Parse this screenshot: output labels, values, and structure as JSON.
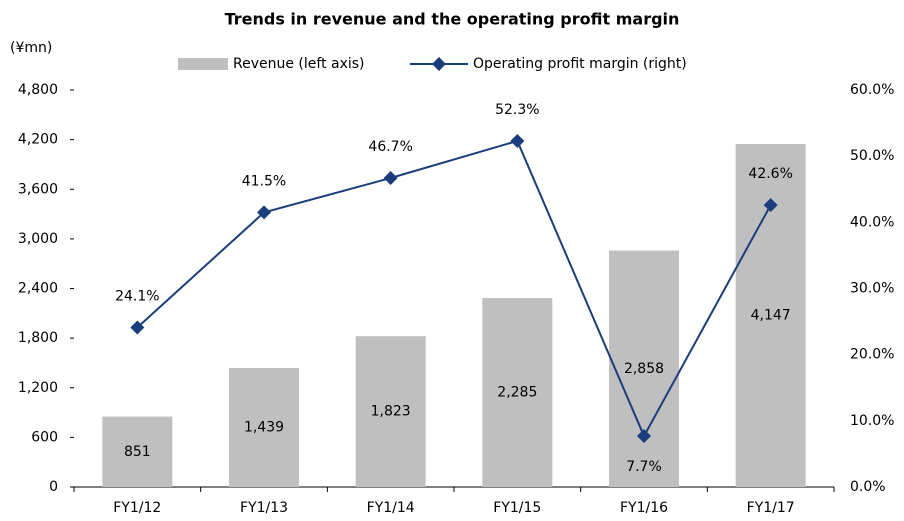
{
  "chart_data": {
    "type": "bar_line",
    "title": "Trends in revenue and the operating profit margin",
    "y_label": "(¥mn)",
    "categories": [
      "FY1/12",
      "FY1/13",
      "FY1/14",
      "FY1/15",
      "FY1/16",
      "FY1/17"
    ],
    "series": [
      {
        "name": "Revenue (left axis)",
        "type": "bar",
        "color": "#bfbfbf",
        "values": [
          851,
          1439,
          1823,
          2285,
          2858,
          4147
        ],
        "value_labels": [
          "851",
          "1,439",
          "1,823",
          "2,285",
          "2,858",
          "4,147"
        ]
      },
      {
        "name": "Operating profit margin (right)",
        "type": "line",
        "axis": "y2",
        "color": "#1a3d7c",
        "values": [
          24.1,
          41.5,
          46.7,
          52.3,
          7.7,
          42.6
        ],
        "value_labels": [
          "24.1%",
          "41.5%",
          "46.7%",
          "52.3%",
          "7.7%",
          "42.6%"
        ]
      }
    ],
    "ylim": [
      0,
      4800
    ],
    "yticks": [
      0,
      600,
      {
        "value": 1200,
        "label": "1,200"
      },
      {
        "value": 1800,
        "label": "1,800"
      },
      {
        "value": 2400,
        "label": "2,400"
      },
      {
        "value": 3000,
        "label": "3,000"
      },
      {
        "value": 3600,
        "label": "3,600"
      },
      {
        "value": 4200,
        "label": "4,200"
      },
      {
        "value": 4800,
        "label": "4,800"
      }
    ],
    "y2lim": [
      0,
      60
    ],
    "y2ticks": [
      {
        "value": 0,
        "label": "0.0%"
      },
      {
        "value": 10,
        "label": "10.0%"
      },
      {
        "value": 20,
        "label": "20.0%"
      },
      {
        "value": 30,
        "label": "30.0%"
      },
      {
        "value": 40,
        "label": "40.0%"
      },
      {
        "value": 50,
        "label": "50.0%"
      },
      {
        "value": 60,
        "label": "60.0%"
      }
    ],
    "grid": false,
    "legend": "top"
  }
}
